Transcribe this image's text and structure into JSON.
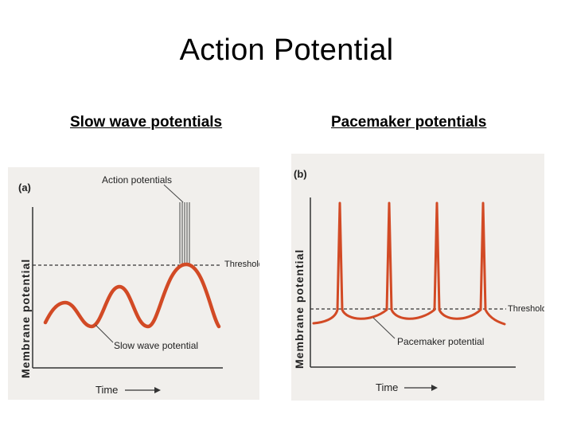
{
  "slide": {
    "title": "Action Potential"
  },
  "left": {
    "heading": "Slow wave potentials",
    "panel_label": "(a)",
    "y_axis_label": "Membrane potential",
    "x_axis_label": "Time",
    "threshold_label": "Threshold",
    "annotation_top": "Action potentials",
    "annotation_bottom": "Slow wave potential"
  },
  "right": {
    "heading": "Pacemaker potentials",
    "panel_label": "(b)",
    "y_axis_label": "Membrane potential",
    "x_axis_label": "Time",
    "threshold_label": "Threshold",
    "annotation_bottom": "Pacemaker potential"
  },
  "colors": {
    "trace": "#d24a25",
    "threshold": "#333333",
    "axis": "#333333",
    "panel_bg": "#f1efec"
  }
}
